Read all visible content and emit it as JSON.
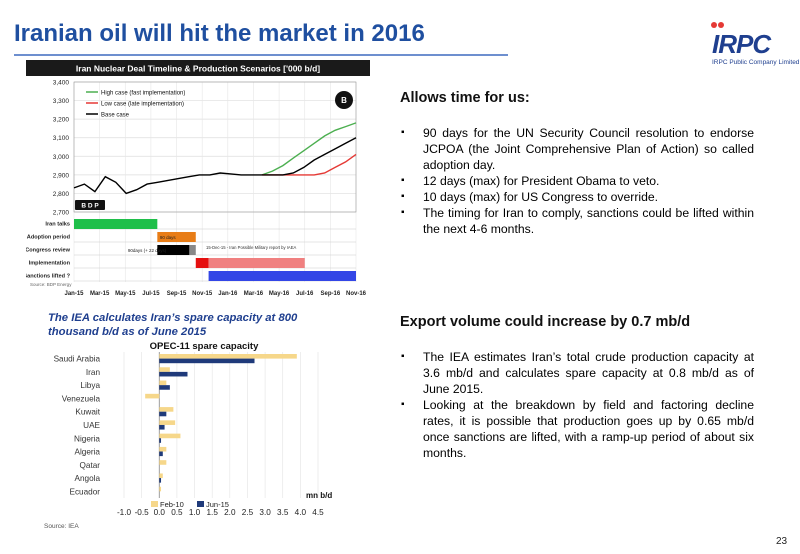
{
  "page": {
    "title": "Iranian oil will hit the market in 2016",
    "page_number": "23",
    "logo": {
      "name": "IRPC",
      "subtitle": "IRPC Public Company Limited"
    }
  },
  "section1": {
    "heading": "Allows time for us:",
    "bullets": [
      "90 days for the UN Security Council resolution to endorse JCPOA (the Joint Comprehensive Plan of Action) so called adoption day.",
      "12 days (max) for President Obama to veto.",
      "10 days (max) for US Congress to override.",
      "The timing for Iran to comply, sanctions could be lifted within the next 4-6 months."
    ]
  },
  "section2": {
    "heading": "Export volume could increase by 0.7 mb/d",
    "bullets": [
      "The IEA estimates Iran’s total crude production capacity at 3.6 mb/d and calculates spare capacity at 0.8 mb/d as of June 2015.",
      "Looking at the breakdown by field and factoring decline rates, it is possible that production goes up by 0.65 mb/d once sanctions are lifted, with a ramp-up period of about six months."
    ]
  },
  "chart2_caption": "The IEA calculates Iran’s spare capacity at 800 thousand b/d as of June 2015",
  "chart2_source": "Source: IEA",
  "chart_data": [
    {
      "type": "line",
      "title": "Iran Nuclear Deal Timeline & Production Scenarios ['000 b/d]",
      "ylim": [
        2700,
        3400
      ],
      "yticks": [
        "3,400",
        "3,300",
        "3,200",
        "3,100",
        "3,000",
        "2,900",
        "2,800",
        "2,700"
      ],
      "x_labels": [
        "Jan-15",
        "Mar-15",
        "May-15",
        "Jul-15",
        "Sep-15",
        "Nov-15",
        "Jan-16",
        "Mar-16",
        "May-16",
        "Jul-16",
        "Sep-16",
        "Nov-16"
      ],
      "badge": "B D P",
      "colors": {
        "high": "#4caf50",
        "low": "#e53935",
        "base": "#000000"
      },
      "series": [
        {
          "name": "High case (fast implementation)",
          "key": "high",
          "values": [
            null,
            null,
            null,
            null,
            null,
            null,
            null,
            null,
            null,
            null,
            null,
            null,
            null,
            null,
            null,
            null,
            null,
            null,
            2900,
            2920,
            2950,
            2990,
            3030,
            3070,
            3110,
            3140,
            3160,
            3180
          ]
        },
        {
          "name": "Low case (late implementation)",
          "key": "low",
          "values": [
            null,
            null,
            null,
            null,
            null,
            null,
            null,
            null,
            null,
            null,
            null,
            null,
            null,
            null,
            null,
            null,
            null,
            null,
            2900,
            2900,
            2900,
            2900,
            2900,
            2900,
            2910,
            2940,
            2970,
            3010
          ]
        },
        {
          "name": "Base case",
          "key": "base",
          "values": [
            2830,
            2850,
            2810,
            2890,
            2860,
            2800,
            2820,
            2850,
            2860,
            2870,
            2880,
            2890,
            2900,
            2900,
            2910,
            2905,
            2900,
            2900,
            2900,
            2900,
            2900,
            2910,
            2940,
            2980,
            3010,
            3040,
            3070,
            3100
          ]
        }
      ],
      "timeline": {
        "rows": [
          "Iran talks",
          "Adoption period",
          "Congress review",
          "Implementation",
          "Sanctions lifted ?"
        ],
        "annotations": {
          "days90": "90 days",
          "days90_12": "90days (+ 22 days)",
          "note": "15-Dec-15 - Iran Possible Military report by IAEA"
        },
        "source": "Source: BDP Energy"
      }
    },
    {
      "type": "bar",
      "orientation": "horizontal",
      "title": "OPEC-11 spare capacity",
      "xlabel": "mn b/d",
      "xlim": [
        -1.0,
        4.5
      ],
      "xticks": [
        "-1.0",
        "-0.5",
        "0.0",
        "0.5",
        "1.0",
        "1.5",
        "2.0",
        "2.5",
        "3.0",
        "3.5",
        "4.0",
        "4.5"
      ],
      "categories": [
        "Saudi Arabia",
        "Iran",
        "Libya",
        "Venezuela",
        "Kuwait",
        "UAE",
        "Nigeria",
        "Algeria",
        "Qatar",
        "Angola",
        "Ecuador"
      ],
      "colors": {
        "Feb-10": "#f6d78a",
        "Jun-15": "#1f3a7a"
      },
      "series": [
        {
          "name": "Feb-10",
          "values": [
            3.9,
            0.3,
            0.2,
            -0.4,
            0.4,
            0.45,
            0.6,
            0.2,
            0.2,
            0.1,
            0.05
          ]
        },
        {
          "name": "Jun-15",
          "values": [
            2.7,
            0.8,
            0.3,
            0.0,
            0.2,
            0.15,
            0.05,
            0.1,
            0.0,
            0.05,
            0.0
          ]
        }
      ]
    }
  ]
}
